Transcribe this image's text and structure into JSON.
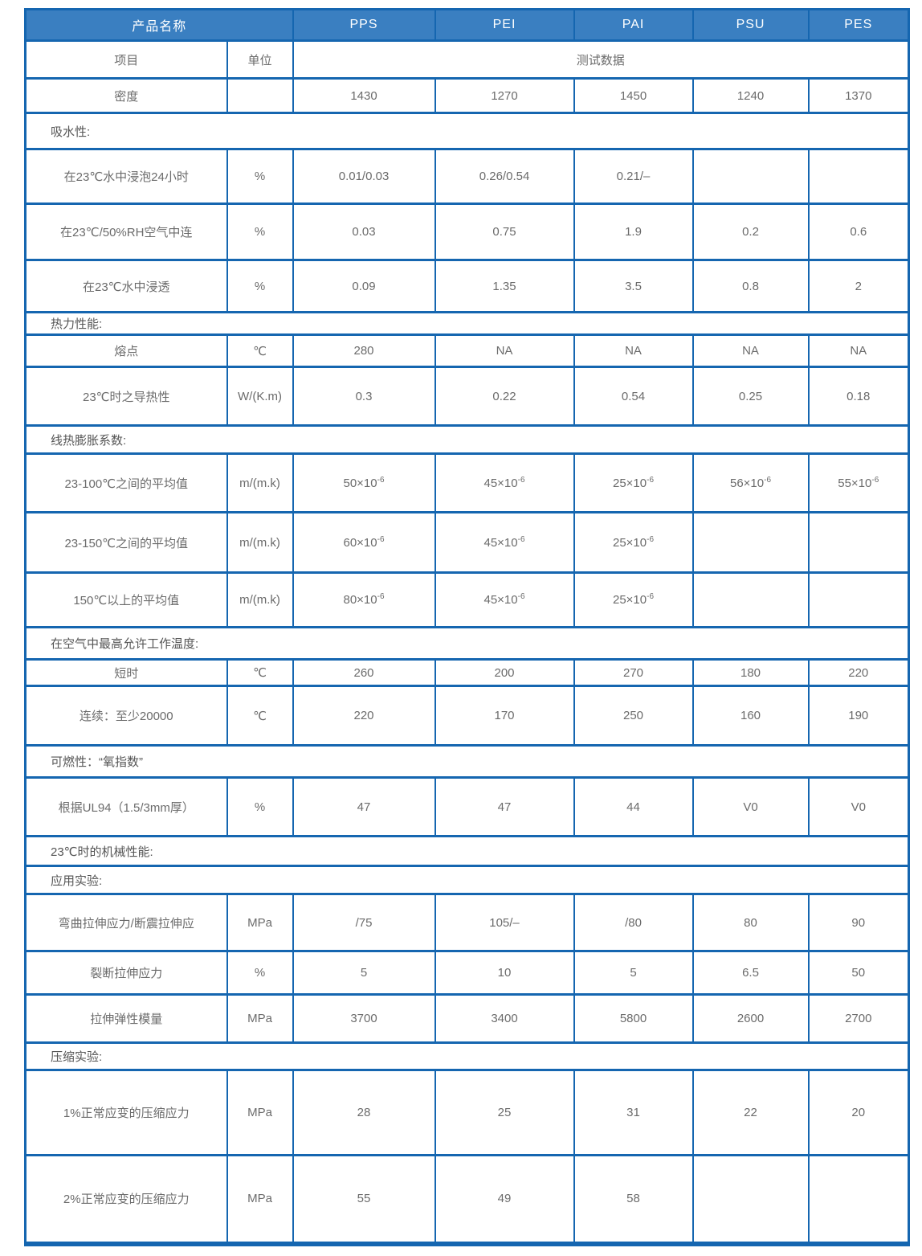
{
  "colors": {
    "header_bg": "#3a7fc1",
    "border": "#1566b0",
    "cell_text": "#6b6b6b",
    "section_text": "#555555"
  },
  "table": {
    "header": {
      "title": "产品名称",
      "products": [
        "PPS",
        "PEI",
        "PAI",
        "PSU",
        "PES"
      ]
    },
    "subheader": {
      "item": "项目",
      "unit": "单位",
      "data": "测试数据"
    },
    "rows": [
      {
        "type": "data",
        "label": "密度",
        "unit": "",
        "values": [
          "1430",
          "1270",
          "1450",
          "1240",
          "1370"
        ]
      },
      {
        "type": "section",
        "label": "吸水性:"
      },
      {
        "type": "data",
        "label": "在23℃水中浸泡24小时",
        "unit": "%",
        "values": [
          "0.01/0.03",
          "0.26/0.54",
          "0.21/–",
          "",
          ""
        ]
      },
      {
        "type": "data",
        "label": "在23℃/50%RH空气中连",
        "unit": "%",
        "values": [
          "0.03",
          "0.75",
          "1.9",
          "0.2",
          "0.6"
        ]
      },
      {
        "type": "data",
        "label": "在23℃水中浸透",
        "unit": "%",
        "values": [
          "0.09",
          "1.35",
          "3.5",
          "0.8",
          "2"
        ]
      },
      {
        "type": "section",
        "label": "热力性能:"
      },
      {
        "type": "data",
        "label": "熔点",
        "unit": "℃",
        "values": [
          "280",
          "NA",
          "NA",
          "NA",
          "NA"
        ]
      },
      {
        "type": "data",
        "label": "23℃时之导热性",
        "unit": "W/(K.m)",
        "values": [
          "0.3",
          "0.22",
          "0.54",
          "0.25",
          "0.18"
        ]
      },
      {
        "type": "section",
        "label": "线热膨胀系数:"
      },
      {
        "type": "data",
        "label": "23-100℃之间的平均值",
        "unit": "m/(m.k)",
        "values": [
          "50×10^-6",
          "45×10^-6",
          "25×10^-6",
          "56×10^-6",
          "55×10^-6"
        ]
      },
      {
        "type": "data",
        "label": "23-150℃之间的平均值",
        "unit": "m/(m.k)",
        "values": [
          "60×10^-6",
          "45×10^-6",
          "25×10^-6",
          "",
          ""
        ]
      },
      {
        "type": "data",
        "label": "150℃以上的平均值",
        "unit": "m/(m.k)",
        "values": [
          "80×10^-6",
          "45×10^-6",
          "25×10^-6",
          "",
          ""
        ]
      },
      {
        "type": "section",
        "label": "在空气中最高允许工作温度:"
      },
      {
        "type": "data",
        "label": "短时",
        "unit": "℃",
        "values": [
          "260",
          "200",
          "270",
          "180",
          "220"
        ]
      },
      {
        "type": "data",
        "label": "连续：至少20000",
        "unit": "℃",
        "values": [
          "220",
          "170",
          "250",
          "160",
          "190"
        ]
      },
      {
        "type": "section",
        "label": "可燃性：“氧指数”"
      },
      {
        "type": "data",
        "label": "根据UL94（1.5/3mm厚）",
        "unit": "%",
        "values": [
          "47",
          "47",
          "44",
          "V0",
          "V0"
        ]
      },
      {
        "type": "section",
        "label": "23℃时的机械性能:"
      },
      {
        "type": "section",
        "label": "应用实验:"
      },
      {
        "type": "data",
        "label": "弯曲拉伸应力/断震拉伸应",
        "unit": "MPa",
        "values": [
          "/75",
          "105/–",
          "/80",
          "80",
          "90"
        ]
      },
      {
        "type": "data",
        "label": "裂断拉伸应力",
        "unit": "%",
        "values": [
          "5",
          "10",
          "5",
          "6.5",
          "50"
        ]
      },
      {
        "type": "data",
        "label": "拉伸弹性模量",
        "unit": "MPa",
        "values": [
          "3700",
          "3400",
          "5800",
          "2600",
          "2700"
        ]
      },
      {
        "type": "section",
        "label": "压缩实验:"
      },
      {
        "type": "data",
        "label": "1%正常应变的压缩应力",
        "unit": "MPa",
        "values": [
          "28",
          "25",
          "31",
          "22",
          "20"
        ]
      },
      {
        "type": "data",
        "label": "2%正常应变的压缩应力",
        "unit": "MPa",
        "values": [
          "55",
          "49",
          "58",
          "",
          ""
        ]
      }
    ]
  }
}
